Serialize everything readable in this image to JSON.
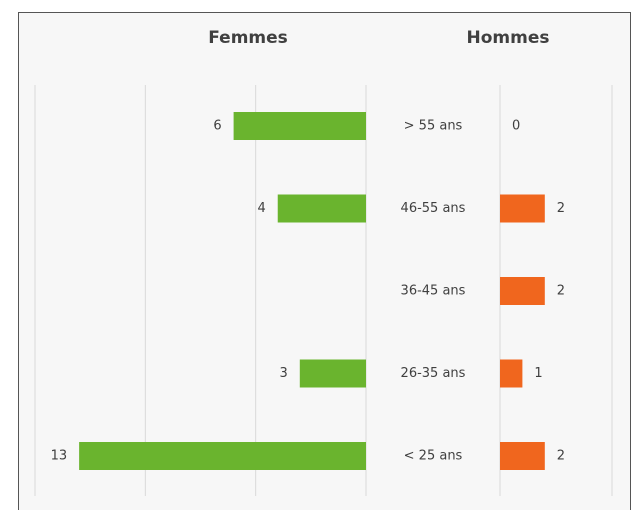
{
  "chart_data": {
    "type": "bar",
    "categories": [
      "> 55 ans",
      "46-55 ans",
      "36-45 ans",
      "26-35 ans",
      "< 25 ans"
    ],
    "series": [
      {
        "name": "Femmes",
        "color": "#6ab42e",
        "values": [
          6,
          4,
          null,
          3,
          13
        ],
        "xlim": [
          0,
          15
        ],
        "xticks": [
          0,
          5,
          10,
          15
        ]
      },
      {
        "name": "Hommes",
        "color": "#f0661e",
        "values": [
          0,
          2,
          2,
          1,
          2
        ],
        "xlim": [
          0,
          5
        ],
        "xticks": [
          0,
          5
        ]
      }
    ],
    "grid": true
  }
}
